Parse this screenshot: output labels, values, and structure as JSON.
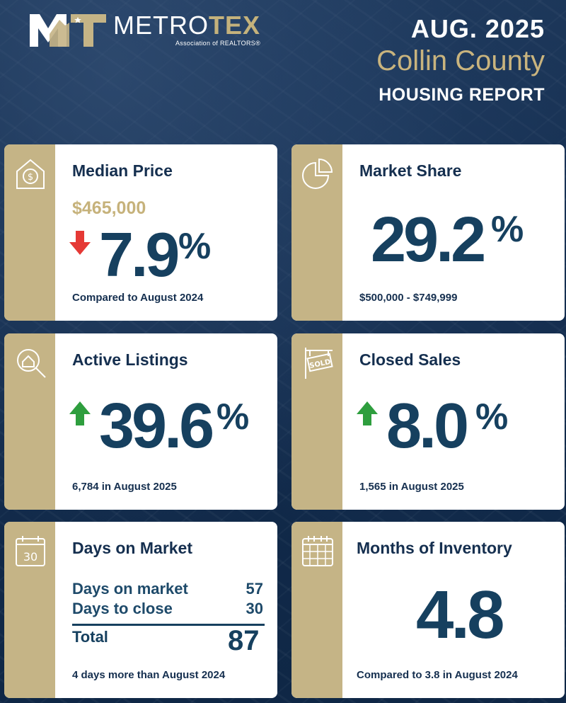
{
  "brand": {
    "name_prefix": "METRO",
    "name_suffix": "TEX",
    "subtitle": "Association of REALTORS®"
  },
  "header": {
    "date": "AUG. 2025",
    "county": "Collin County",
    "report": "HOUSING REPORT"
  },
  "colors": {
    "navy": "#152f4f",
    "gold": "#c5b486",
    "down_arrow": "#e53935",
    "up_arrow": "#2e9e3e"
  },
  "cards": {
    "median_price": {
      "icon": "house-dollar-icon",
      "title": "Median Price",
      "price": "$465,000",
      "direction": "down",
      "value": "7.9",
      "unit": "%",
      "footer": "Compared to August 2024"
    },
    "market_share": {
      "icon": "pie-chart-icon",
      "title": "Market Share",
      "value": "29.2",
      "unit": "%",
      "footer": "$500,000 - $749,999"
    },
    "active_listings": {
      "icon": "house-search-icon",
      "title": "Active Listings",
      "direction": "up",
      "value": "39.6",
      "unit": "%",
      "footer": "6,784 in August 2025"
    },
    "closed_sales": {
      "icon": "sold-sign-icon",
      "title": "Closed Sales",
      "direction": "up",
      "value": "8.0",
      "unit": "%",
      "footer": "1,565  in August 2025"
    },
    "days_on_market": {
      "icon": "calendar-30-icon",
      "icon_text": "30",
      "title": "Days on Market",
      "rows": [
        {
          "label": "Days on market",
          "value": "57"
        },
        {
          "label": "Days to close",
          "value": "30"
        }
      ],
      "total_label": "Total",
      "total_value": "87",
      "footer": "4 days more than August 2024"
    },
    "months_inventory": {
      "icon": "calendar-grid-icon",
      "title": "Months of Inventory",
      "value": "4.8",
      "footer": "Compared to 3.8 in August 2024"
    }
  }
}
